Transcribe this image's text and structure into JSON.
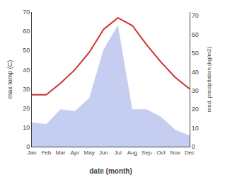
{
  "chart_data": {
    "type": "line",
    "xlabel": "date (month)",
    "ylabel": "max temp (C)",
    "y2label": "med. precipitation (kg/m2)",
    "categories": [
      "Jan",
      "Feb",
      "Mar",
      "Apr",
      "May",
      "Jun",
      "Jul",
      "Aug",
      "Sep",
      "Oct",
      "Nov",
      "Dec"
    ],
    "series": [
      {
        "type": "area",
        "axis": "y2",
        "color": "#c5cdf0",
        "values": [
          13,
          12,
          20,
          19,
          26,
          52,
          65,
          20,
          20,
          16,
          9,
          6
        ]
      },
      {
        "type": "line",
        "color": "#cc3333",
        "values": [
          27,
          27,
          33,
          40,
          49,
          61,
          67,
          63,
          53,
          44,
          36,
          30
        ]
      }
    ],
    "ylim": [
      0,
      70
    ],
    "yticks": [
      0,
      10,
      20,
      30,
      40,
      50,
      60,
      70
    ],
    "y2lim": [
      0,
      72
    ],
    "y2ticks": [
      0,
      10,
      20,
      30,
      40,
      50,
      60,
      70
    ],
    "grid": false
  }
}
